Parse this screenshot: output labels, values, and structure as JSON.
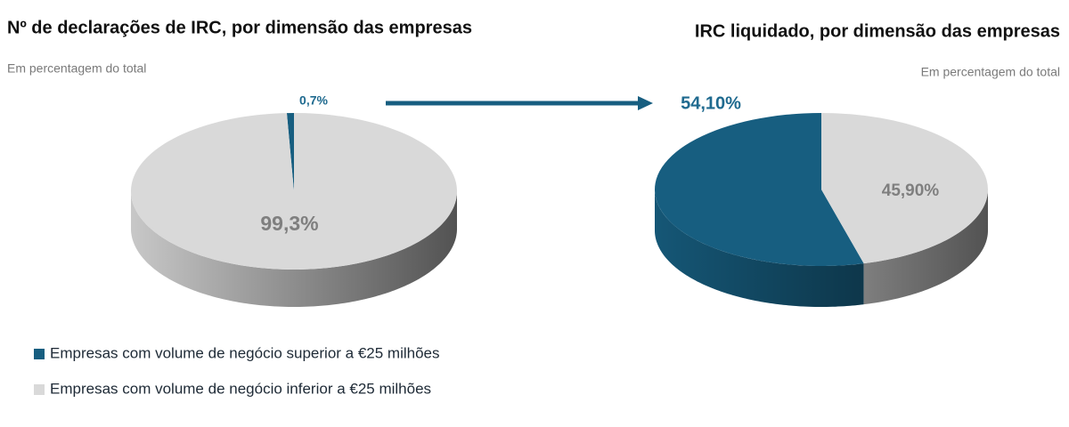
{
  "chart_data": [
    {
      "type": "pie",
      "title": "Nº de declarações de IRC, por dimensão das empresas",
      "subtitle": "Em percentagem do total",
      "categories": [
        "Empresas com volume de negócio superior a €25 milhões",
        "Empresas com volume de negócio inferior a €25 milhões"
      ],
      "values": [
        0.7,
        99.3
      ],
      "value_labels": [
        "0,7%",
        "99,3%"
      ],
      "colors": [
        "#175e80",
        "#d9d9d9"
      ],
      "label_colors": [
        "#1f6a8f",
        "#7f7f7f"
      ]
    },
    {
      "type": "pie",
      "title": "IRC liquidado, por dimensão das empresas",
      "subtitle": "Em percentagem do total",
      "values": [
        54.1,
        45.9
      ],
      "value_labels": [
        "54,10%",
        "45,90%"
      ],
      "colors": [
        "#175e80",
        "#d9d9d9"
      ],
      "label_colors": [
        "#1f6a8f",
        "#7f7f7f"
      ]
    }
  ]
}
